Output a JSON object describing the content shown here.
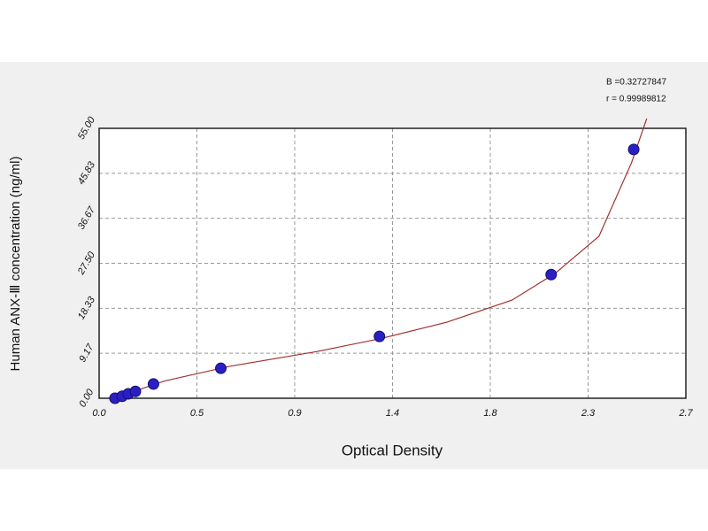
{
  "chart_data": {
    "type": "scatter",
    "xlabel": "Optical Density",
    "ylabel": "Human ANX-Ⅲ concentration (ng/ml)",
    "annotations": [
      "B =0.32727847",
      "r = 0.99989812"
    ],
    "x": [
      0.073,
      0.106,
      0.134,
      0.167,
      0.25,
      0.56,
      1.29,
      2.08,
      2.46
    ],
    "values": [
      0,
      0.4,
      0.9,
      1.4,
      2.9,
      6.1,
      12.6,
      25.2,
      50.7
    ],
    "color": "#2a1fc4",
    "curve": {
      "x": [
        0.1,
        0.3,
        0.6,
        1.0,
        1.3,
        1.6,
        1.9,
        2.1,
        2.3,
        2.45,
        2.52
      ],
      "y": [
        0.5,
        3.5,
        6.5,
        9.5,
        12.2,
        15.5,
        20,
        25.5,
        33,
        48,
        57
      ],
      "color": "#a03030"
    },
    "xlim": [
      0,
      2.7
    ],
    "xticks": [
      {
        "value": 0,
        "label": "0.0"
      },
      {
        "value": 0.45,
        "label": "0.5"
      },
      0.9,
      {
        "value": 1.35,
        "label": "1.4"
      },
      1.8,
      {
        "value": 2.25,
        "label": "2.3"
      },
      2.7
    ],
    "ylim": [
      0,
      55
    ],
    "yticks": [
      {
        "value": 0,
        "label": "0.00"
      },
      9.17,
      18.33,
      {
        "value": 27.5,
        "label": "27.50"
      },
      36.67,
      45.83,
      {
        "value": 55,
        "label": "55.00"
      }
    ],
    "grid": true
  }
}
